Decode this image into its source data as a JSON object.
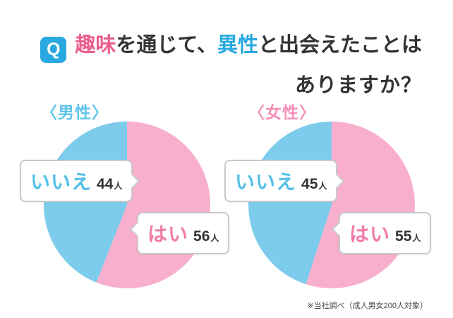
{
  "header": {
    "q_badge": "Q",
    "title_line1_parts": [
      {
        "text": "趣味",
        "style": "pink"
      },
      {
        "text": "を通じて、",
        "style": "dark"
      },
      {
        "text": "異性",
        "style": "blue"
      },
      {
        "text": "と出会えたことは",
        "style": "dark"
      }
    ],
    "title_line2": "ありますか？"
  },
  "charts": [
    {
      "title": "〈男性〉",
      "no_label": "いいえ",
      "no_value": "44",
      "yes_label": "はい",
      "yes_value": "56",
      "unit": "人"
    },
    {
      "title": "〈女性〉",
      "no_label": "いいえ",
      "no_value": "45",
      "yes_label": "はい",
      "yes_value": "55",
      "unit": "人"
    }
  ],
  "chart_data": [
    {
      "type": "pie",
      "title": "〈男性〉",
      "labels": [
        "はい",
        "いいえ"
      ],
      "values": [
        56,
        44
      ],
      "unit": "人",
      "colors": [
        "#f8afce",
        "#7eccec"
      ],
      "start_angle_deg": 0,
      "direction": "clockwise",
      "legend_position": "none"
    },
    {
      "type": "pie",
      "title": "〈女性〉",
      "labels": [
        "はい",
        "いいえ"
      ],
      "values": [
        55,
        45
      ],
      "unit": "人",
      "colors": [
        "#f8afce",
        "#7eccec"
      ],
      "start_angle_deg": 0,
      "direction": "clockwise",
      "legend_position": "none"
    }
  ],
  "footer": {
    "note": "※当社調べ（成人男女200人対象）"
  },
  "colors": {
    "accent_pink": "#ea5f8f",
    "accent_blue": "#29a9e0",
    "pie_pink": "#f8afce",
    "pie_blue": "#7eccec",
    "label_male_blue": "#5fc4ea",
    "label_female_pink": "#f48fb8",
    "text_dark": "#333333"
  }
}
